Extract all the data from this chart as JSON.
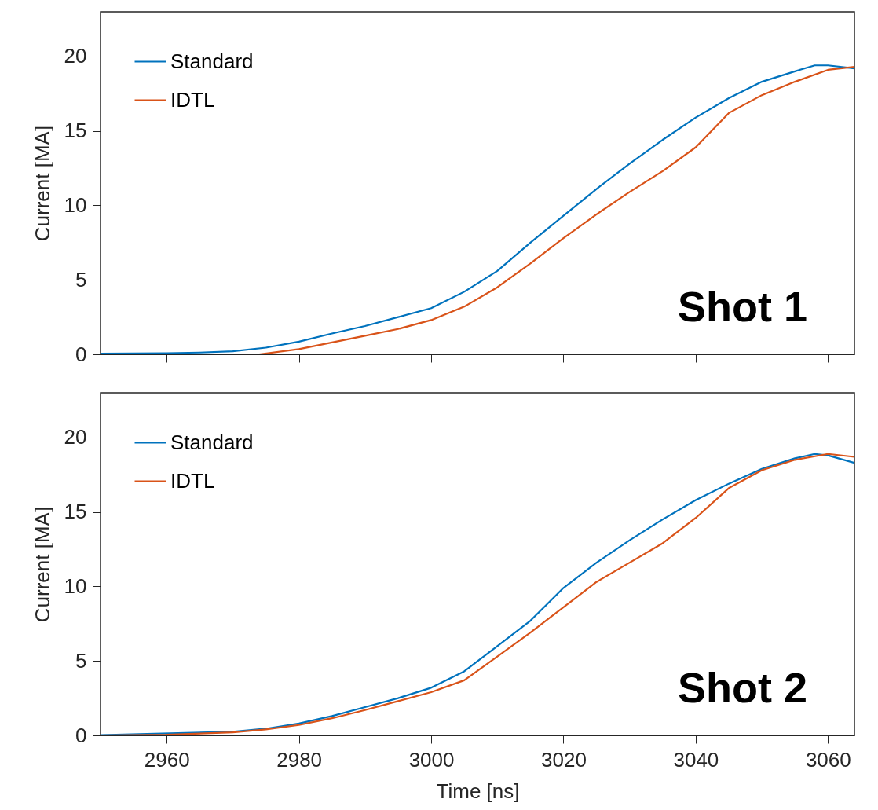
{
  "chart_data": [
    {
      "type": "line",
      "ylabel": "Current [MA]",
      "xlim": [
        2950,
        3064
      ],
      "ylim": [
        0,
        23
      ],
      "xticks": [
        2960,
        2980,
        3000,
        3020,
        3040,
        3060
      ],
      "yticks": [
        0,
        5,
        10,
        15,
        20
      ],
      "tick_labels": "y",
      "grid": false,
      "legend": "top left",
      "marker": "none",
      "line_style": "solid",
      "annotations": [
        "Shot 1"
      ],
      "series": [
        {
          "name": "Standard",
          "color": "#0072bd",
          "x": [
            2950,
            2960,
            2965,
            2970,
            2975,
            2980,
            2985,
            2990,
            2995,
            3000,
            3005,
            3010,
            3015,
            3020,
            3025,
            3030,
            3035,
            3040,
            3045,
            3050,
            3055,
            3058,
            3060,
            3064
          ],
          "values": [
            0.05,
            0.08,
            0.12,
            0.2,
            0.45,
            0.85,
            1.4,
            1.9,
            2.5,
            3.1,
            4.2,
            5.6,
            7.5,
            9.3,
            11.1,
            12.8,
            14.4,
            15.9,
            17.2,
            18.3,
            19.0,
            19.4,
            19.4,
            19.2
          ]
        },
        {
          "name": "IDTL",
          "color": "#d95319",
          "x": [
            2974,
            2980,
            2985,
            2990,
            2995,
            3000,
            3005,
            3010,
            3015,
            3020,
            3025,
            3030,
            3035,
            3040,
            3045,
            3050,
            3055,
            3060,
            3064
          ],
          "values": [
            0,
            0.35,
            0.8,
            1.25,
            1.7,
            2.3,
            3.2,
            4.5,
            6.1,
            7.8,
            9.4,
            10.9,
            12.3,
            13.9,
            16.2,
            17.4,
            18.3,
            19.1,
            19.3
          ]
        }
      ]
    },
    {
      "type": "line",
      "xlabel": "Time [ns]",
      "ylabel": "Current [MA]",
      "xlim": [
        2950,
        3064
      ],
      "ylim": [
        0,
        23
      ],
      "xticks": [
        2960,
        2980,
        3000,
        3020,
        3040,
        3060
      ],
      "yticks": [
        0,
        5,
        10,
        15,
        20
      ],
      "grid": false,
      "legend": "top left",
      "marker": "none",
      "line_style": "solid",
      "annotations": [
        "Shot 2"
      ],
      "series": [
        {
          "name": "Standard",
          "color": "#0072bd",
          "x": [
            2950,
            2970,
            2975,
            2980,
            2985,
            2990,
            2995,
            3000,
            3005,
            3010,
            3015,
            3020,
            3025,
            3030,
            3035,
            3040,
            3045,
            3050,
            3055,
            3058,
            3060,
            3064
          ],
          "values": [
            0.02,
            0.25,
            0.45,
            0.8,
            1.3,
            1.9,
            2.5,
            3.2,
            4.3,
            6.0,
            7.7,
            9.9,
            11.6,
            13.1,
            14.5,
            15.8,
            16.9,
            17.9,
            18.6,
            18.9,
            18.8,
            18.3
          ]
        },
        {
          "name": "IDTL",
          "color": "#d95319",
          "x": [
            2950,
            2960,
            2970,
            2975,
            2980,
            2985,
            2990,
            2995,
            3000,
            3005,
            3010,
            3015,
            3020,
            3025,
            3030,
            3035,
            3040,
            3045,
            3050,
            3055,
            3060,
            3064
          ],
          "values": [
            0,
            0.05,
            0.2,
            0.4,
            0.7,
            1.15,
            1.7,
            2.3,
            2.9,
            3.7,
            5.3,
            6.9,
            8.6,
            10.3,
            11.6,
            12.9,
            14.6,
            16.6,
            17.8,
            18.5,
            18.9,
            18.7
          ]
        }
      ]
    }
  ]
}
